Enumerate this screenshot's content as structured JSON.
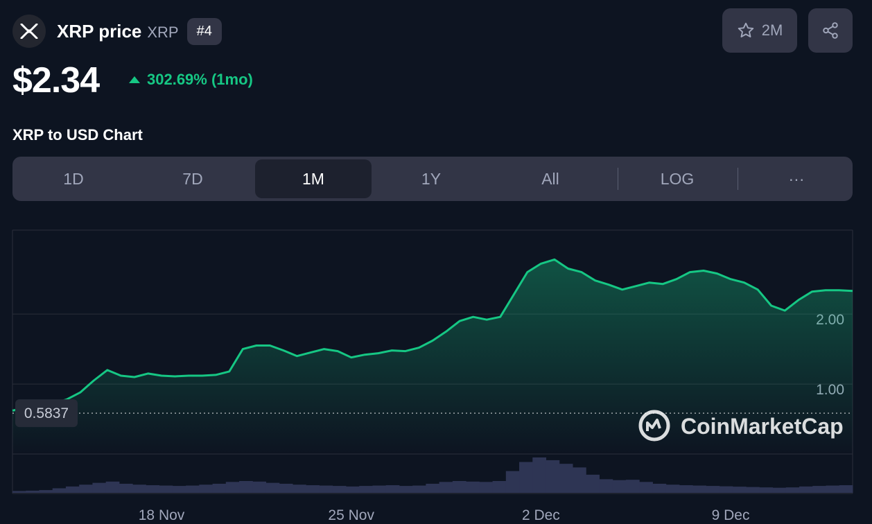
{
  "coin": {
    "name": "XRP price",
    "symbol": "XRP",
    "rank": "#4",
    "price": "$2.34",
    "change": "302.69% (1mo)"
  },
  "actions": {
    "watchlist_count": "2M"
  },
  "chart_title": "XRP to USD Chart",
  "tabs": [
    {
      "label": "1D"
    },
    {
      "label": "7D"
    },
    {
      "label": "1M"
    },
    {
      "label": "1Y"
    },
    {
      "label": "All"
    },
    {
      "label": "LOG"
    },
    {
      "label": "···"
    }
  ],
  "active_tab": "1M",
  "watermark": "CoinMarketCap",
  "colors": {
    "background": "#0d1421",
    "up": "#16c784",
    "panel": "#323546",
    "volume": "#2e3554"
  },
  "chart_data": {
    "type": "line",
    "y_ticks": [
      "1.00",
      "2.00"
    ],
    "baseline": {
      "value": 0.5837,
      "label": "0.5837"
    },
    "x_ticks": [
      "18 Nov",
      "25 Nov",
      "2 Dec",
      "9 Dec"
    ],
    "ylim": [
      0.0,
      3.2
    ],
    "series": [
      {
        "x": [
          0,
          0.5,
          1,
          1.5,
          2,
          2.5,
          3,
          3.5,
          4,
          4.5,
          5,
          5.5,
          6,
          6.5,
          7,
          7.5,
          8,
          8.5,
          9,
          9.5,
          10,
          10.5,
          11,
          11.5,
          12,
          12.5,
          13,
          13.5,
          14,
          14.5,
          15,
          15.5,
          16,
          16.5,
          17,
          17.5,
          18,
          18.5,
          19,
          19.5,
          20,
          20.5,
          21,
          21.5,
          22,
          22.5,
          23,
          23.5,
          24,
          24.5,
          25,
          25.5,
          26,
          26.5,
          27,
          27.5,
          28,
          28.5,
          29,
          29.5,
          30,
          30.5,
          31
        ],
        "values": [
          0.62,
          0.66,
          0.64,
          0.72,
          0.78,
          0.88,
          1.05,
          1.2,
          1.12,
          1.1,
          1.15,
          1.12,
          1.11,
          1.12,
          1.12,
          1.13,
          1.18,
          1.5,
          1.55,
          1.55,
          1.48,
          1.4,
          1.45,
          1.5,
          1.47,
          1.38,
          1.42,
          1.44,
          1.48,
          1.47,
          1.52,
          1.62,
          1.75,
          1.9,
          1.96,
          1.92,
          1.96,
          2.28,
          2.6,
          2.72,
          2.78,
          2.65,
          2.6,
          2.48,
          2.42,
          2.35,
          2.4,
          2.45,
          2.43,
          2.5,
          2.6,
          2.62,
          2.58,
          2.5,
          2.45,
          2.35,
          2.12,
          2.05,
          2.2,
          2.32,
          2.34,
          2.34,
          2.33
        ]
      }
    ],
    "volume": [
      0.1,
      0.12,
      0.15,
      0.25,
      0.35,
      0.45,
      0.55,
      0.62,
      0.5,
      0.45,
      0.42,
      0.4,
      0.38,
      0.4,
      0.45,
      0.5,
      0.6,
      0.65,
      0.62,
      0.55,
      0.5,
      0.45,
      0.42,
      0.4,
      0.38,
      0.35,
      0.38,
      0.4,
      0.42,
      0.38,
      0.4,
      0.5,
      0.6,
      0.65,
      0.62,
      0.6,
      0.65,
      1.2,
      1.7,
      1.95,
      1.8,
      1.6,
      1.4,
      1.0,
      0.75,
      0.7,
      0.72,
      0.6,
      0.5,
      0.45,
      0.42,
      0.4,
      0.38,
      0.36,
      0.34,
      0.32,
      0.3,
      0.28,
      0.3,
      0.35,
      0.38,
      0.4,
      0.42
    ]
  }
}
